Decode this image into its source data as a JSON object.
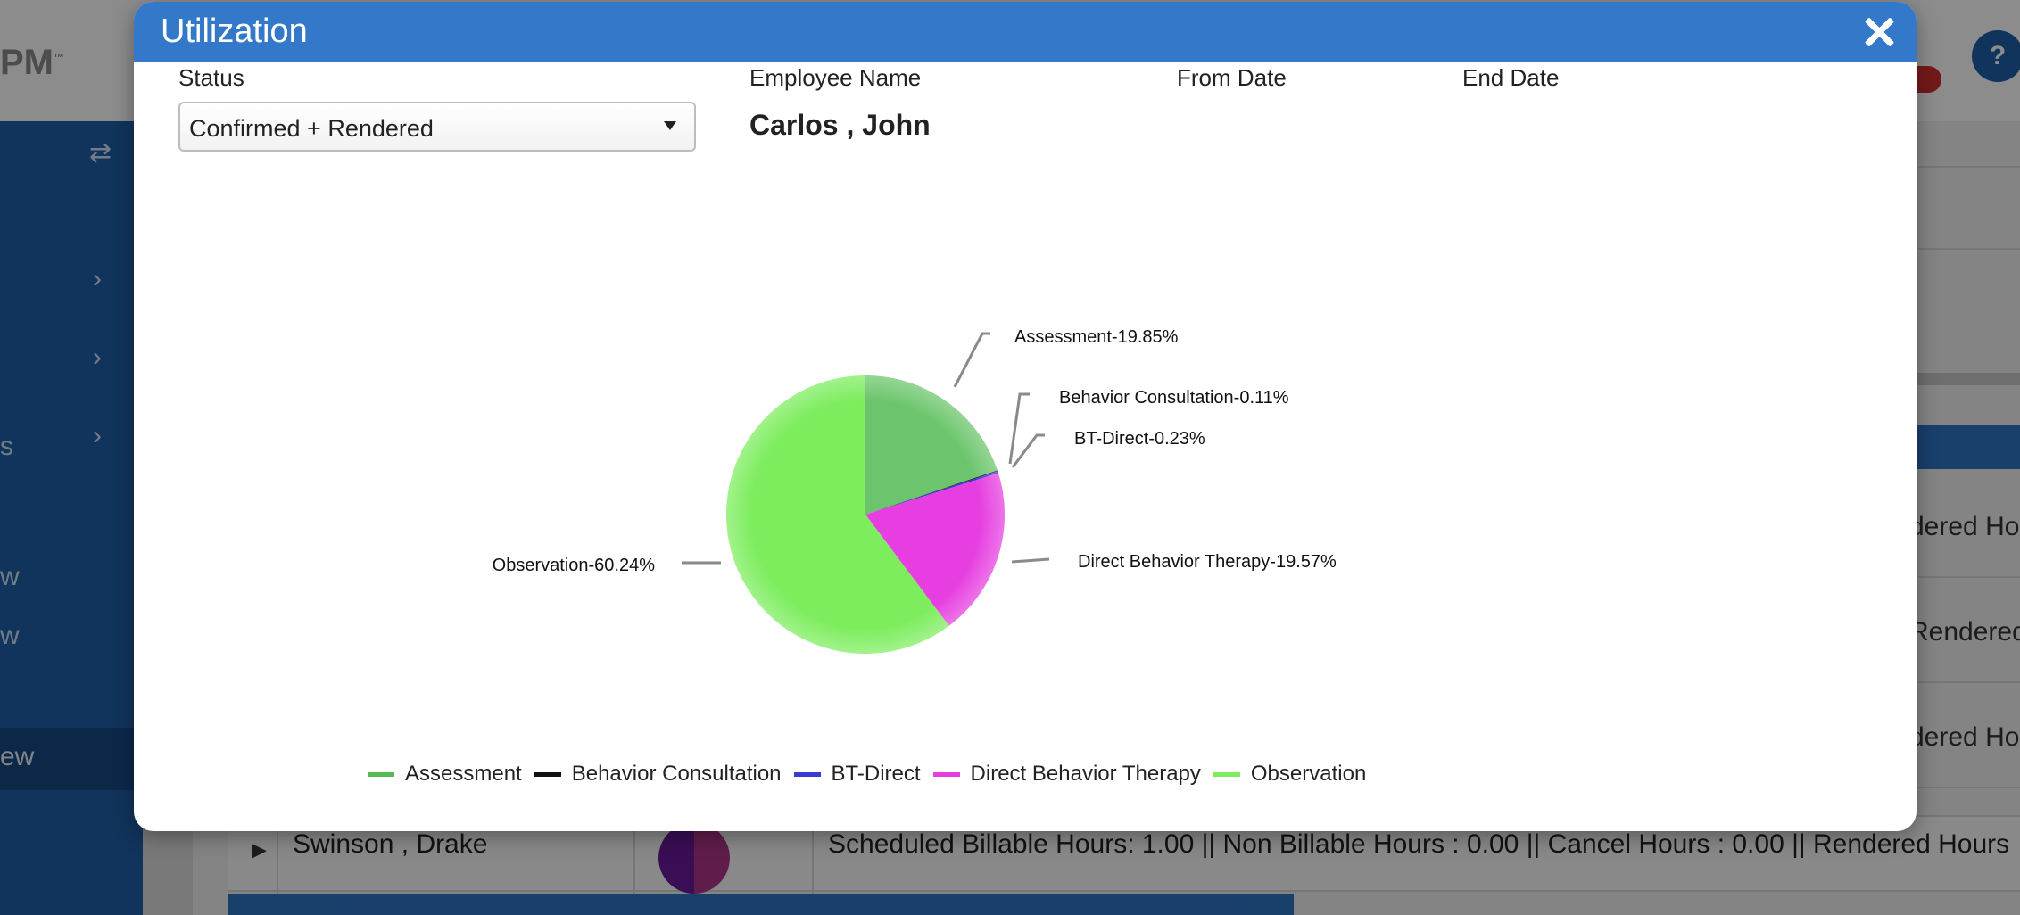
{
  "background": {
    "logo": "PM",
    "logo_mark": "™",
    "help_icon": "?",
    "sidebar_fragments": [
      "s",
      "w",
      "w"
    ],
    "sidebar_active": "ew",
    "right_fragments": [
      "dered Ho",
      "Rendered",
      "dered Ho"
    ],
    "row": {
      "name": "Swinson , Drake",
      "hours": "Scheduled Billable Hours: 1.00 || Non Billable Hours : 0.00 || Cancel Hours : 0.00 || Rendered Hours"
    }
  },
  "modal": {
    "title": "Utilization",
    "close_icon": "close-icon",
    "filters": {
      "status_label": "Status",
      "status_value": "Confirmed + Rendered",
      "employee_label": "Employee Name",
      "employee_value": "Carlos , John",
      "from_label": "From Date",
      "end_label": "End Date"
    }
  },
  "chart_data": {
    "type": "pie",
    "slices": [
      {
        "name": "Assessment",
        "value": 19.85,
        "label": "Assessment-19.85%",
        "color": "#6cc56c",
        "legend_color": "#55b955"
      },
      {
        "name": "Behavior Consultation",
        "value": 0.11,
        "label": "Behavior Consultation-0.11%",
        "color": "#111111",
        "legend_color": "#111111"
      },
      {
        "name": "BT-Direct",
        "value": 0.23,
        "label": "BT-Direct-0.23%",
        "color": "#3a3ad6",
        "legend_color": "#3a3ad6"
      },
      {
        "name": "Direct Behavior Therapy",
        "value": 19.57,
        "label": "Direct Behavior Therapy-19.57%",
        "color": "#e63ee0",
        "legend_color": "#e63ee0"
      },
      {
        "name": "Observation",
        "value": 60.24,
        "label": "Observation-60.24%",
        "color": "#7ded5e",
        "legend_color": "#7ded5e"
      }
    ],
    "legend_position": "bottom"
  }
}
